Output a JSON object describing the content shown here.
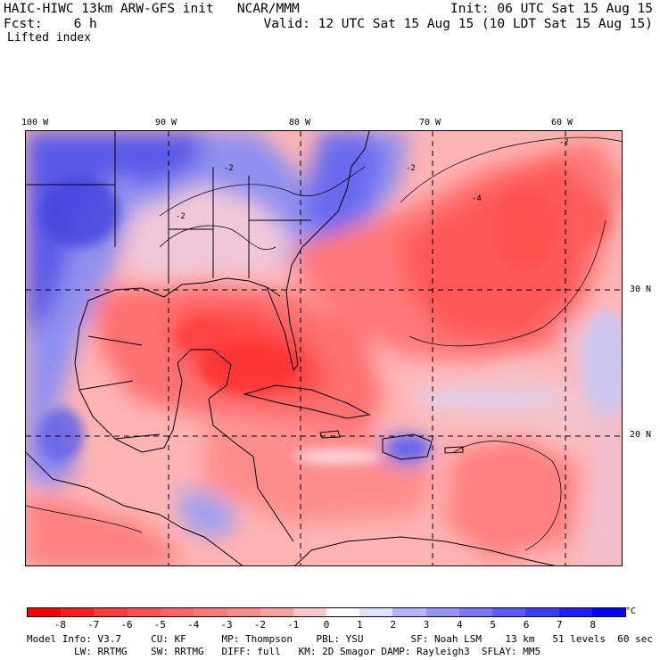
{
  "header": {
    "line1_left": "HAIC-HIWC 13km ARW-GFS init   NCAR/MMM",
    "line1_right": "Init: 06 UTC Sat 15 Aug 15",
    "line2_left": "Fcst:    6 h",
    "line2_right": "Valid: 12 UTC Sat 15 Aug 15 (10 LDT Sat 15 Aug 15)",
    "field": "Lifted index"
  },
  "map": {
    "longitude_labels": [
      "100 W",
      "90 W",
      "80 W",
      "70 W",
      "60 W"
    ],
    "latitude_labels": [
      "30 N",
      "20 N"
    ],
    "contour_labels": [
      "-2",
      "-2",
      "-2",
      "-2",
      "-4"
    ]
  },
  "colorbar": {
    "ticks": [
      "-8",
      "-7",
      "-6",
      "-5",
      "-4",
      "-3",
      "-2",
      "-1",
      "0",
      "1",
      "2",
      "3",
      "4",
      "5",
      "6",
      "7",
      "8"
    ],
    "unit": "°C",
    "colors": [
      "#ff0000",
      "#ff1e1e",
      "#ff3c3c",
      "#ff5050",
      "#ff6464",
      "#ff7878",
      "#ff8c8c",
      "#ffa0a0",
      "#ffc8c8",
      "#ffffff",
      "#e0e0ff",
      "#b4b4ff",
      "#9696ff",
      "#7878ff",
      "#5a5aff",
      "#3c3cff",
      "#1e1eff",
      "#0000ff"
    ]
  },
  "footer": {
    "line1": "Model Info: V3.7     CU: KF      MP: Thompson    PBL: YSU        SF: Noah LSM    13 km   51 levels  60 sec",
    "line2": "        LW: RRTMG    SW: RRTMG   DIFF: full   KM: 2D Smagor DAMP: Rayleigh3  SFLAY: MM5"
  }
}
